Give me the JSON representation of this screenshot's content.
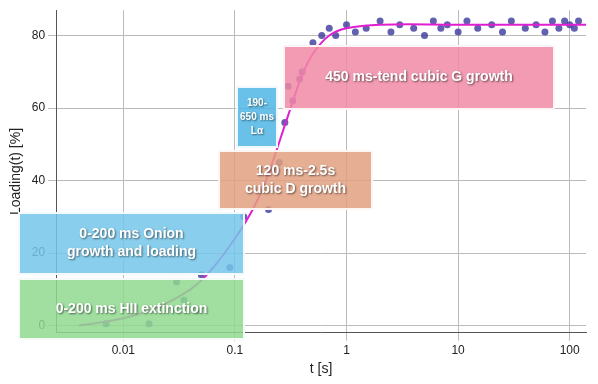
{
  "chart_data": {
    "type": "scatter",
    "x_label": "t [s]",
    "y_label": "Loading(t) [%]",
    "log": "x",
    "grid": true,
    "xlim": [
      0.0025,
      140
    ],
    "xticks": [
      0.01,
      0.1,
      1,
      10,
      100
    ],
    "ylim": [
      -2,
      87
    ],
    "yticks": [
      0,
      20,
      40,
      60,
      80
    ],
    "series": [
      {
        "type": "scatter",
        "color": "#3a3a9c",
        "marker": "circle",
        "x": [
          0.007,
          0.017,
          0.03,
          0.035,
          0.047,
          0.05,
          0.09,
          0.12,
          0.2,
          0.22,
          0.25,
          0.28,
          0.3,
          0.33,
          0.38,
          0.4,
          0.5,
          0.6,
          0.7,
          0.8,
          1,
          1.2,
          1.5,
          2,
          2.5,
          3,
          4,
          5,
          6,
          7,
          8,
          10,
          12,
          15,
          20,
          25,
          30,
          40,
          50,
          60,
          70,
          80,
          90,
          100,
          110,
          120
        ],
        "values": [
          0.5,
          0.5,
          12,
          7,
          4,
          14,
          16,
          30,
          32,
          43,
          45,
          56,
          66,
          62,
          68,
          70,
          78,
          80,
          82,
          80,
          83,
          81,
          82,
          84,
          81,
          83,
          82,
          80,
          84,
          82,
          83,
          81,
          84,
          82,
          83,
          81,
          84,
          82,
          83,
          81,
          84,
          82,
          84,
          83,
          82,
          84
        ]
      },
      {
        "type": "line",
        "color": "#e020d0",
        "line_style": "solid",
        "x": [
          0.004,
          0.01,
          0.02,
          0.04,
          0.06,
          0.1,
          0.15,
          0.2,
          0.3,
          0.4,
          0.5,
          0.7,
          1,
          2,
          10,
          100,
          140
        ],
        "values": [
          0,
          2,
          5,
          10,
          15,
          24,
          33,
          42,
          58,
          69,
          75,
          80,
          82,
          83,
          83,
          83,
          83
        ]
      }
    ],
    "annotations": [
      {
        "lines": [
          "0-200 ms HII extinction"
        ],
        "color": "#8fd98f"
      },
      {
        "lines": [
          "0-200 ms Onion",
          "growth and loading"
        ],
        "color": "#74c6ea"
      },
      {
        "lines": [
          "120 ms-2.5s",
          "cubic D growth"
        ],
        "color": "#e2a080"
      },
      {
        "lines": [
          "190-",
          "650 ms",
          "Lα"
        ],
        "color": "#4fb6e6"
      },
      {
        "lines": [
          "450 ms-tend cubic G growth"
        ],
        "color": "#f08aa6"
      }
    ]
  }
}
